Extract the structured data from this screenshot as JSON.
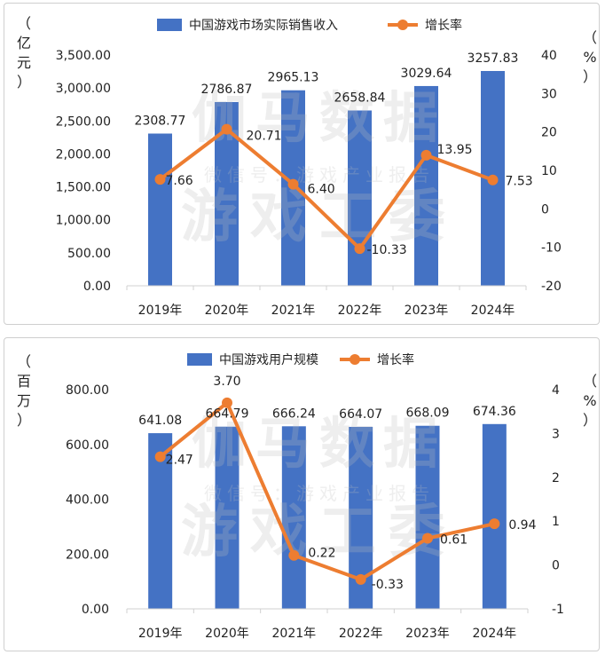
{
  "watermark": {
    "line1": "伽马数据",
    "line2": "微信号：游戏产业报告",
    "line3": "游戏工委"
  },
  "chart_data": [
    {
      "type": "bar",
      "categories": [
        "2019年",
        "2020年",
        "2021年",
        "2022年",
        "2023年",
        "2024年"
      ],
      "series": [
        {
          "name": "中国游戏市场实际销售收入",
          "kind": "bar",
          "axis": "left",
          "color": "#4472c4",
          "values": [
            2308.77,
            2786.87,
            2965.13,
            2658.84,
            3029.64,
            3257.83
          ],
          "labels": [
            "2308.77",
            "2786.87",
            "2965.13",
            "2658.84",
            "3029.64",
            "3257.83"
          ]
        },
        {
          "name": "增长率",
          "kind": "line",
          "axis": "right",
          "color": "#ed7d31",
          "values": [
            7.66,
            20.71,
            6.4,
            -10.33,
            13.95,
            7.53
          ],
          "labels": [
            "7.66",
            "20.71",
            "6.40",
            "-10.33",
            "13.95",
            "7.53"
          ]
        }
      ],
      "yaxis_left": {
        "unit_chars": [
          "（",
          "亿",
          "元",
          "）"
        ],
        "ticks": [
          "0.00",
          "500.00",
          "1,000.00",
          "1,500.00",
          "2,000.00",
          "2,500.00",
          "3,000.00",
          "3,500.00"
        ],
        "min": 0,
        "max": 3500
      },
      "yaxis_right": {
        "unit_chars": [
          "（",
          "%",
          "）"
        ],
        "ticks": [
          "-20",
          "-10",
          "0",
          "10",
          "20",
          "30",
          "40"
        ],
        "min": -20,
        "max": 40
      },
      "legend_position": "top-center",
      "grid": false
    },
    {
      "type": "bar",
      "categories": [
        "2019年",
        "2020年",
        "2021年",
        "2022年",
        "2023年",
        "2024年"
      ],
      "series": [
        {
          "name": "中国游戏用户规模",
          "kind": "bar",
          "axis": "left",
          "color": "#4472c4",
          "values": [
            641.08,
            664.79,
            666.24,
            664.07,
            668.09,
            674.36
          ],
          "labels": [
            "641.08",
            "664.79",
            "666.24",
            "664.07",
            "668.09",
            "674.36"
          ]
        },
        {
          "name": "增长率",
          "kind": "line",
          "axis": "right",
          "color": "#ed7d31",
          "values": [
            2.47,
            3.7,
            0.22,
            -0.33,
            0.61,
            0.94
          ],
          "labels": [
            "2.47",
            "3.70",
            "0.22",
            "-0.33",
            "0.61",
            "0.94"
          ]
        }
      ],
      "yaxis_left": {
        "unit_chars": [
          "（",
          "百",
          "万",
          "）"
        ],
        "ticks": [
          "0.00",
          "200.00",
          "400.00",
          "600.00",
          "800.00"
        ],
        "min": 0,
        "max": 800
      },
      "yaxis_right": {
        "unit_chars": [
          "（",
          "%",
          "）"
        ],
        "ticks": [
          "-1",
          "0",
          "1",
          "2",
          "3",
          "4"
        ],
        "min": -1,
        "max": 4
      },
      "legend_position": "top-center",
      "grid": false
    }
  ]
}
